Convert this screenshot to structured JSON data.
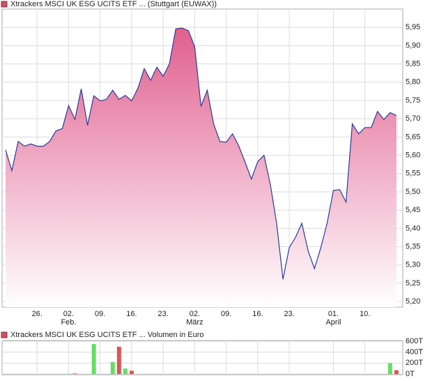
{
  "chart_data": [
    {
      "type": "area",
      "title": "Xtrackers MSCI UK ESG UCITS ETF ... (Stuttgart (EUWAX))",
      "x": [
        0,
        1,
        2,
        3,
        4,
        5,
        6,
        7,
        8,
        9,
        10,
        11,
        12,
        13,
        14,
        15,
        16,
        17,
        18,
        19,
        20,
        21,
        22,
        23,
        24,
        25,
        26,
        27,
        28,
        29,
        30,
        31,
        32,
        33,
        34,
        35,
        36,
        37,
        38,
        39,
        40,
        41,
        42,
        43,
        44,
        45,
        46,
        47,
        48,
        49,
        50,
        51,
        52,
        53,
        54,
        55,
        56,
        57,
        58,
        59,
        60,
        61,
        62
      ],
      "values": [
        5.615,
        5.558,
        5.638,
        5.625,
        5.631,
        5.625,
        5.625,
        5.638,
        5.667,
        5.673,
        5.736,
        5.698,
        5.782,
        5.682,
        5.763,
        5.749,
        5.753,
        5.778,
        5.753,
        5.764,
        5.749,
        5.784,
        5.837,
        5.805,
        5.841,
        5.816,
        5.851,
        5.946,
        5.948,
        5.941,
        5.897,
        5.734,
        5.778,
        5.686,
        5.638,
        5.636,
        5.659,
        5.625,
        5.581,
        5.535,
        5.583,
        5.6,
        5.52,
        5.414,
        5.261,
        5.347,
        5.376,
        5.414,
        5.338,
        5.29,
        5.347,
        5.414,
        5.504,
        5.506,
        5.472,
        5.686,
        5.659,
        5.676,
        5.676,
        5.72,
        5.698,
        5.717,
        5.709
      ],
      "color": "#2a3a9c",
      "fill_color": "#e0608e",
      "xlim": [
        -0.55,
        63
      ],
      "ylim": [
        5.185,
        6.0
      ],
      "xticks": [
        {
          "value": 5,
          "label": "26."
        },
        {
          "value": 10,
          "label": "02."
        },
        {
          "value": 15,
          "label": "09."
        },
        {
          "value": 20,
          "label": "16."
        },
        {
          "value": 25,
          "label": "23."
        },
        {
          "value": 30,
          "label": "02."
        },
        {
          "value": 35,
          "label": "09."
        },
        {
          "value": 40,
          "label": "16."
        },
        {
          "value": 45,
          "label": "23."
        },
        {
          "value": 52,
          "label": "01."
        },
        {
          "value": 57,
          "label": "10."
        }
      ],
      "month_labels": [
        {
          "value": 10,
          "label": "Feb."
        },
        {
          "value": 30,
          "label": "März"
        },
        {
          "value": 52,
          "label": "April"
        }
      ],
      "yticks": [
        {
          "value": 5.2,
          "label": "5,20"
        },
        {
          "value": 5.25,
          "label": "5,25"
        },
        {
          "value": 5.3,
          "label": "5,30"
        },
        {
          "value": 5.35,
          "label": "5,35"
        },
        {
          "value": 5.4,
          "label": "5,40"
        },
        {
          "value": 5.45,
          "label": "5,45"
        },
        {
          "value": 5.5,
          "label": "5,50"
        },
        {
          "value": 5.55,
          "label": "5,55"
        },
        {
          "value": 5.6,
          "label": "5,60"
        },
        {
          "value": 5.65,
          "label": "5,65"
        },
        {
          "value": 5.7,
          "label": "5,70"
        },
        {
          "value": 5.75,
          "label": "5,75"
        },
        {
          "value": 5.8,
          "label": "5,80"
        },
        {
          "value": 5.85,
          "label": "5,85"
        },
        {
          "value": 5.9,
          "label": "5,90"
        },
        {
          "value": 5.95,
          "label": "5,95"
        }
      ],
      "grid": true
    },
    {
      "type": "bar",
      "title": "Xtrackers MSCI UK ESG UCITS ETF ... Volumen in Euro",
      "x": [
        10,
        11,
        14,
        17,
        18,
        19,
        20,
        61,
        62
      ],
      "values": [
        5,
        10,
        550,
        220,
        500,
        100,
        60,
        200,
        70
      ],
      "colors": [
        "#66dd66",
        "#dd5555",
        "#66dd66",
        "#66dd66",
        "#dd5555",
        "#66dd66",
        "#dd5555",
        "#66dd66",
        "#dd5555"
      ],
      "xlim": [
        -0.55,
        63
      ],
      "ylim": [
        0,
        600
      ],
      "yticks": [
        {
          "value": 0,
          "label": "0T"
        },
        {
          "value": 200,
          "label": "200T"
        },
        {
          "value": 400,
          "label": "400T"
        },
        {
          "value": 600,
          "label": "600T"
        }
      ],
      "grid": true
    }
  ]
}
